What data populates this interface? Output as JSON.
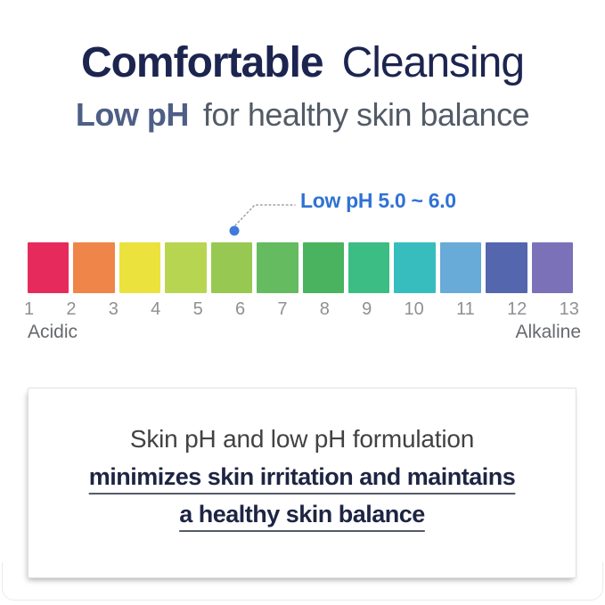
{
  "header": {
    "title_bold": "Comfortable",
    "title_light": "Cleansing",
    "subtitle_bold": "Low pH",
    "subtitle_light": "for healthy skin balance"
  },
  "ph_scale": {
    "callout_label": "Low pH 5.0 ~ 6.0",
    "tick_labels": [
      "1",
      "2",
      "3",
      "4",
      "5",
      "6",
      "7",
      "8",
      "9",
      "10",
      "11",
      "12",
      "13"
    ],
    "left_label": "Acidic",
    "right_label": "Alkaline",
    "segments": [
      {
        "ph_from": 1,
        "ph_to": 2,
        "color": "#e72a5c"
      },
      {
        "ph_from": 2,
        "ph_to": 3,
        "color": "#ef8548"
      },
      {
        "ph_from": 3,
        "ph_to": 4,
        "color": "#ebe23d"
      },
      {
        "ph_from": 4,
        "ph_to": 5,
        "color": "#b8d552"
      },
      {
        "ph_from": 5,
        "ph_to": 6,
        "color": "#97c952"
      },
      {
        "ph_from": 6,
        "ph_to": 7,
        "color": "#64bb60"
      },
      {
        "ph_from": 7,
        "ph_to": 8,
        "color": "#49b35f"
      },
      {
        "ph_from": 8,
        "ph_to": 9,
        "color": "#3cbd84"
      },
      {
        "ph_from": 9,
        "ph_to": 10,
        "color": "#38bdbe"
      },
      {
        "ph_from": 10,
        "ph_to": 11,
        "color": "#68aad8"
      },
      {
        "ph_from": 11,
        "ph_to": 12,
        "color": "#5466ae"
      },
      {
        "ph_from": 12,
        "ph_to": 13,
        "color": "#7b71b9"
      }
    ]
  },
  "info_box": {
    "line1": "Skin pH and low pH formulation",
    "line2": "minimizes skin irritation and maintains",
    "line3": "a healthy skin balance"
  },
  "colors": {
    "title_navy": "#1c2450",
    "subtitle_blue": "#4e5f86",
    "subtitle_gray": "#525b66",
    "callout_blue": "#2f72d4",
    "dot_blue": "#3e7cda",
    "leader_gray": "#9aa0a8",
    "tick_gray": "#8e9194",
    "end_label_gray": "#66696d",
    "info_text_dark": "#1e2543"
  }
}
